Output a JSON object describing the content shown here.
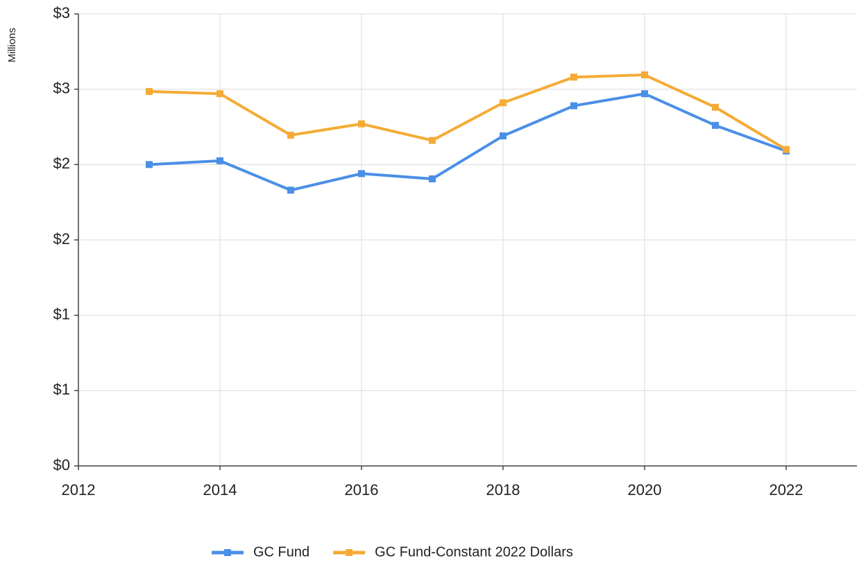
{
  "chart_data": {
    "type": "line",
    "y_label": "Millions",
    "x": [
      2013,
      2014,
      2015,
      2016,
      2017,
      2018,
      2019,
      2020,
      2021,
      2022
    ],
    "series": [
      {
        "name": "GC Fund",
        "color": "#4a8fe7",
        "values": [
          2.0,
          2.025,
          1.83,
          1.94,
          1.905,
          2.19,
          2.39,
          2.47,
          2.26,
          2.09
        ]
      },
      {
        "name": "GC Fund-Constant 2022 Dollars",
        "color": "#f5ab35",
        "values": [
          2.485,
          2.47,
          2.195,
          2.27,
          2.16,
          2.41,
          2.58,
          2.595,
          2.38,
          2.1
        ]
      }
    ],
    "xlim": [
      2012,
      2023
    ],
    "xticks": [
      2012,
      2014,
      2016,
      2018,
      2020,
      2022
    ],
    "ylim": [
      0,
      3
    ],
    "yticks": [
      {
        "value": 0,
        "label": "$0"
      },
      {
        "value": 0.5,
        "label": "$1"
      },
      {
        "value": 1,
        "label": "$1"
      },
      {
        "value": 1.5,
        "label": "$2"
      },
      {
        "value": 2,
        "label": "$2"
      },
      {
        "value": 2.5,
        "label": "$3"
      },
      {
        "value": 3,
        "label": "$3"
      }
    ],
    "grid": true,
    "legend": "bottom"
  }
}
